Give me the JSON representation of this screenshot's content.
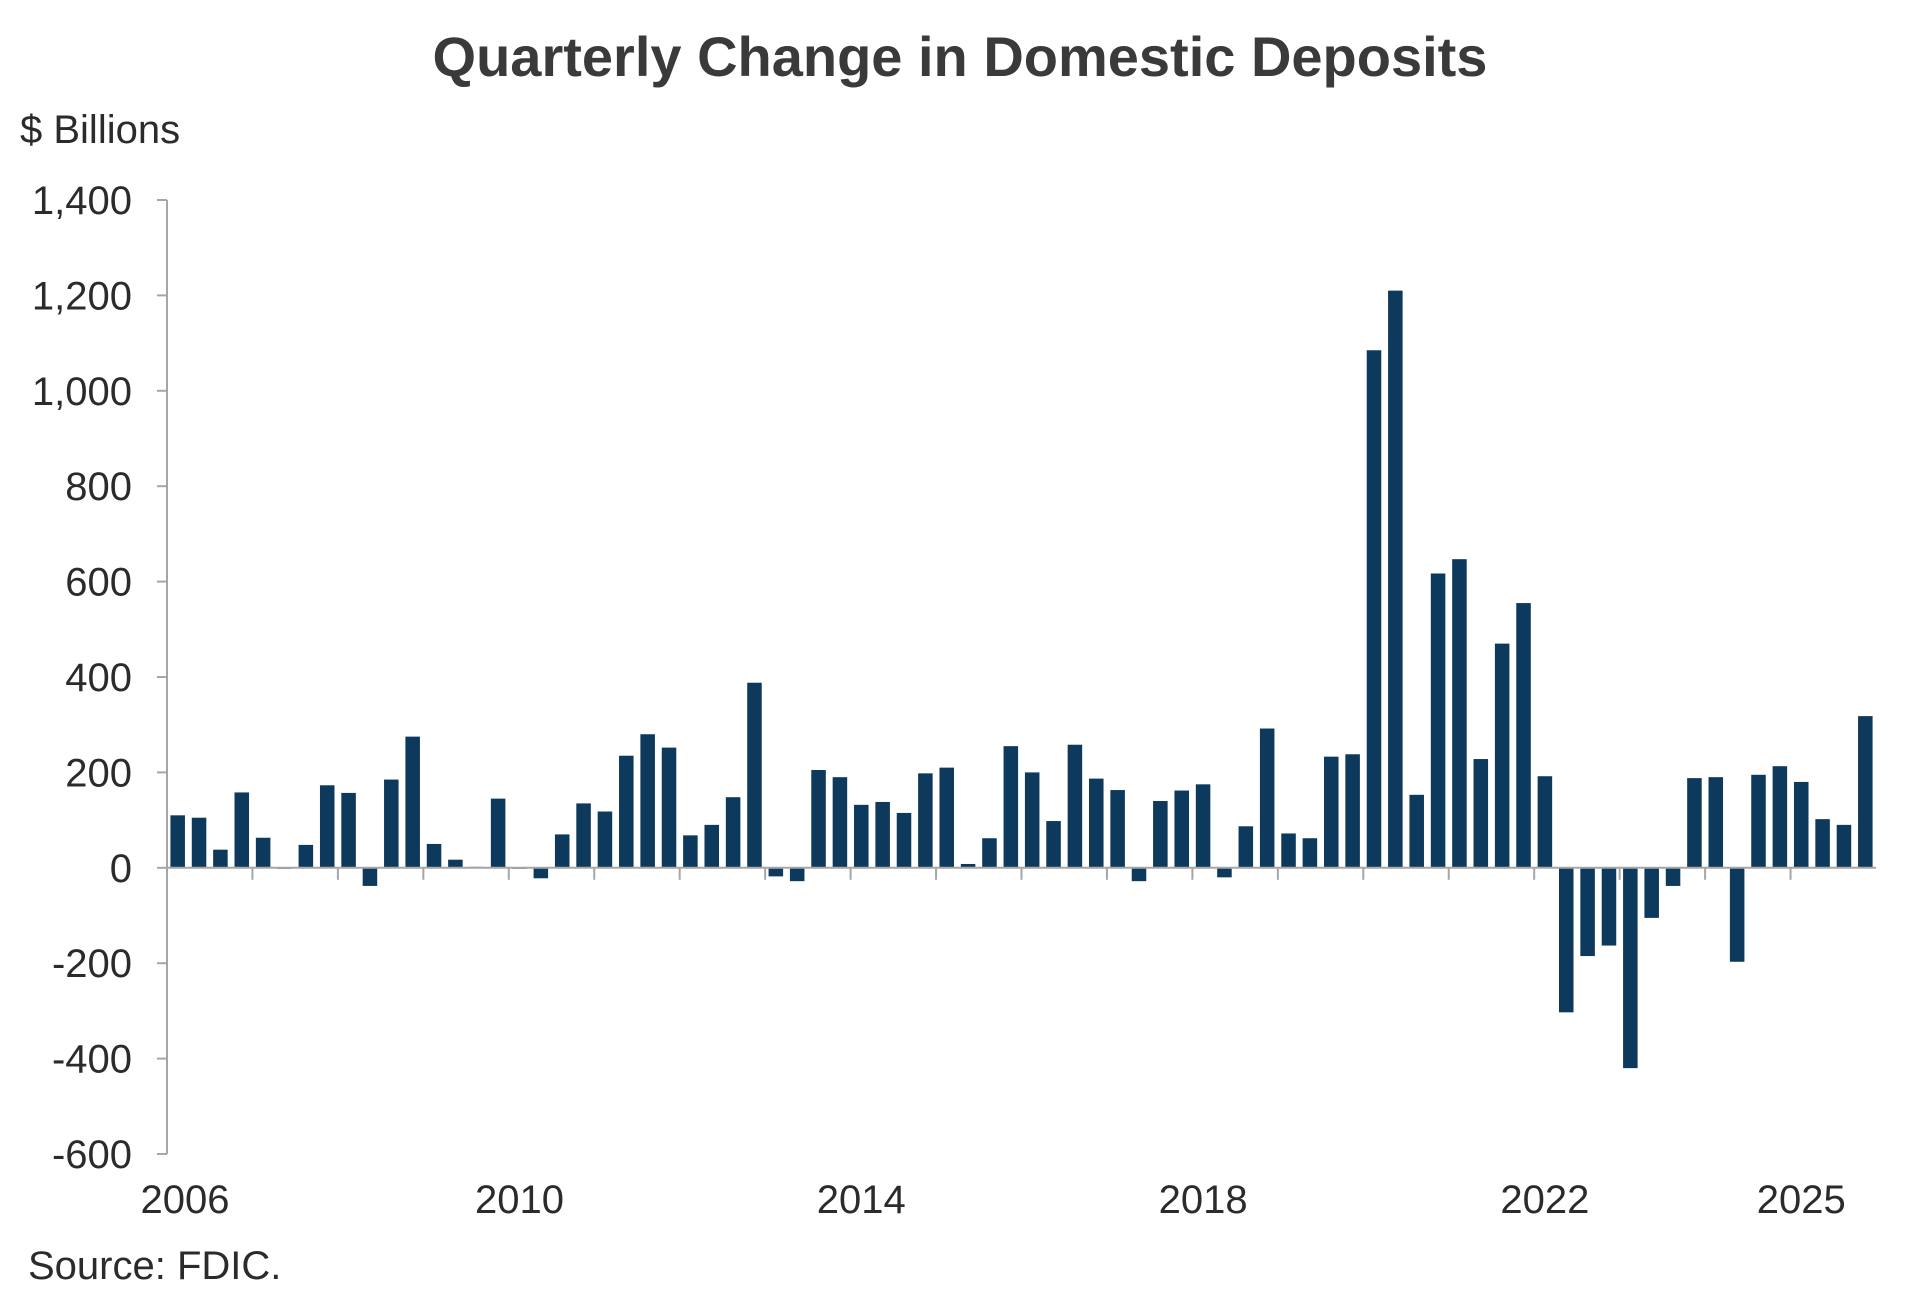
{
  "chart_data": {
    "type": "bar",
    "title": "Quarterly Change in Domestic Deposits",
    "ylabel": "$ Billions",
    "source": "Source: FDIC.",
    "ylim": [
      -600,
      1400
    ],
    "yticks": [
      1400,
      1200,
      1000,
      800,
      600,
      400,
      200,
      0,
      -200,
      -400,
      -600
    ],
    "ytick_labels": [
      "1,400",
      "1,200",
      "1,000",
      "800",
      "600",
      "400",
      "200",
      "0",
      "-200",
      "-400",
      "-600"
    ],
    "xtick_labels": [
      "2006",
      "2010",
      "2014",
      "2018",
      "2022",
      "2025"
    ],
    "xtick_index": [
      0,
      16,
      32,
      48,
      64,
      76
    ],
    "grid": false,
    "legend": "none",
    "bar_color": "#0d3a5c",
    "axis_color": "#a6a6a6",
    "series": [
      {
        "values": [
          110,
          105,
          38,
          158,
          63,
          -2,
          48,
          173,
          157,
          -38,
          185,
          275,
          50,
          17,
          2,
          145,
          -2,
          -22,
          70,
          135,
          118,
          235,
          280,
          252,
          68,
          90,
          148,
          388,
          -18,
          -28,
          205,
          190,
          132,
          138,
          115,
          198,
          210,
          8,
          62,
          255,
          200,
          98,
          258,
          187,
          163,
          -28,
          140,
          162,
          175,
          -20,
          87,
          292,
          72,
          62,
          233,
          238,
          1085,
          1210,
          153,
          617,
          647,
          228,
          470,
          555,
          192,
          -303,
          -185,
          -163,
          -420,
          -105,
          -38,
          188,
          190,
          -197,
          195,
          213,
          180,
          102,
          90,
          318
        ]
      }
    ]
  }
}
